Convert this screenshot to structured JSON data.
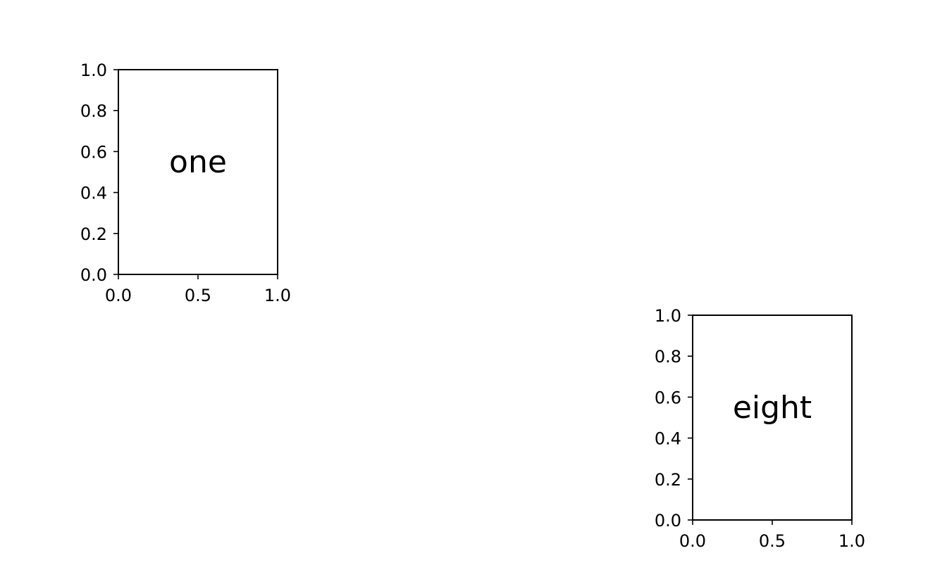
{
  "chart_data": [
    {
      "type": "scatter",
      "title": "",
      "xlabel": "",
      "ylabel": "",
      "annotation": "one",
      "xlim": [
        0.0,
        1.0
      ],
      "ylim": [
        0.0,
        1.0
      ],
      "x_ticks": [
        "0.0",
        "0.5",
        "1.0"
      ],
      "y_ticks": [
        "0.0",
        "0.2",
        "0.4",
        "0.6",
        "0.8",
        "1.0"
      ],
      "grid": false,
      "series": []
    },
    {
      "type": "scatter",
      "title": "",
      "xlabel": "",
      "ylabel": "",
      "annotation": "eight",
      "xlim": [
        0.0,
        1.0
      ],
      "ylim": [
        0.0,
        1.0
      ],
      "x_ticks": [
        "0.0",
        "0.5",
        "1.0"
      ],
      "y_ticks": [
        "0.0",
        "0.2",
        "0.4",
        "0.6",
        "0.8",
        "1.0"
      ],
      "grid": false,
      "series": []
    }
  ],
  "colors": {
    "axes": "#000000",
    "background": "#ffffff"
  }
}
